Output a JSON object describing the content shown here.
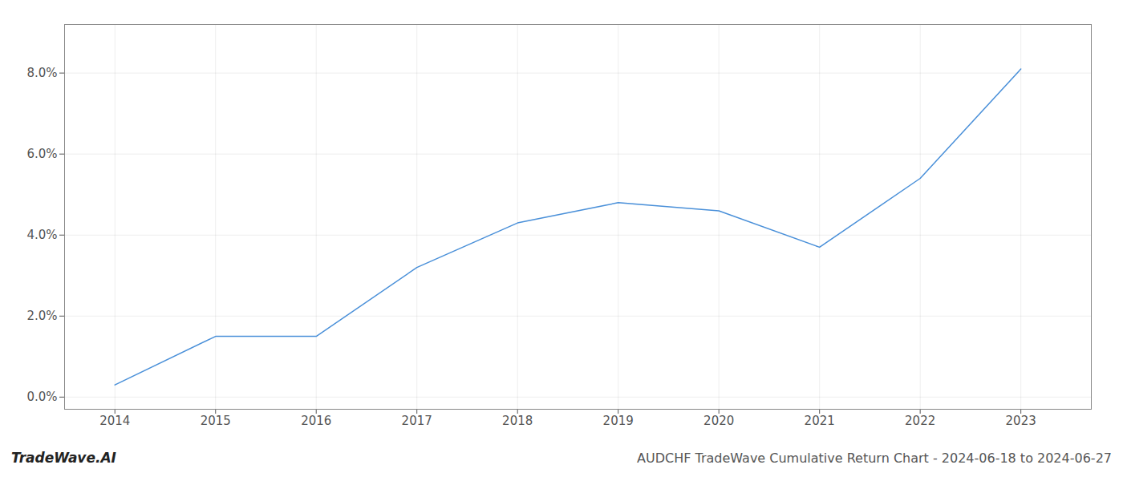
{
  "chart_data": {
    "type": "line",
    "title": "AUDCHF TradeWave Cumulative Return Chart - 2024-06-18 to 2024-06-27",
    "annotations": [
      "TradeWave.AI"
    ],
    "x": [
      2014,
      2015,
      2016,
      2017,
      2018,
      2019,
      2020,
      2021,
      2022,
      2023
    ],
    "values": [
      0.003,
      0.015,
      0.015,
      0.032,
      0.043,
      0.048,
      0.046,
      0.037,
      0.054,
      0.081
    ],
    "color": "#4a90d9",
    "xlim": [
      2013.5,
      2023.7
    ],
    "xticks": [
      2014,
      2015,
      2016,
      2017,
      2018,
      2019,
      2020,
      2021,
      2022,
      2023
    ],
    "ylim": [
      -0.003,
      0.092
    ],
    "yticks": [
      {
        "value": 0.0,
        "label": "0.0%"
      },
      {
        "value": 0.02,
        "label": "2.0%"
      },
      {
        "value": 0.04,
        "label": "4.0%"
      },
      {
        "value": 0.06,
        "label": "6.0%"
      },
      {
        "value": 0.08,
        "label": "8.0%"
      }
    ],
    "grid": true
  }
}
